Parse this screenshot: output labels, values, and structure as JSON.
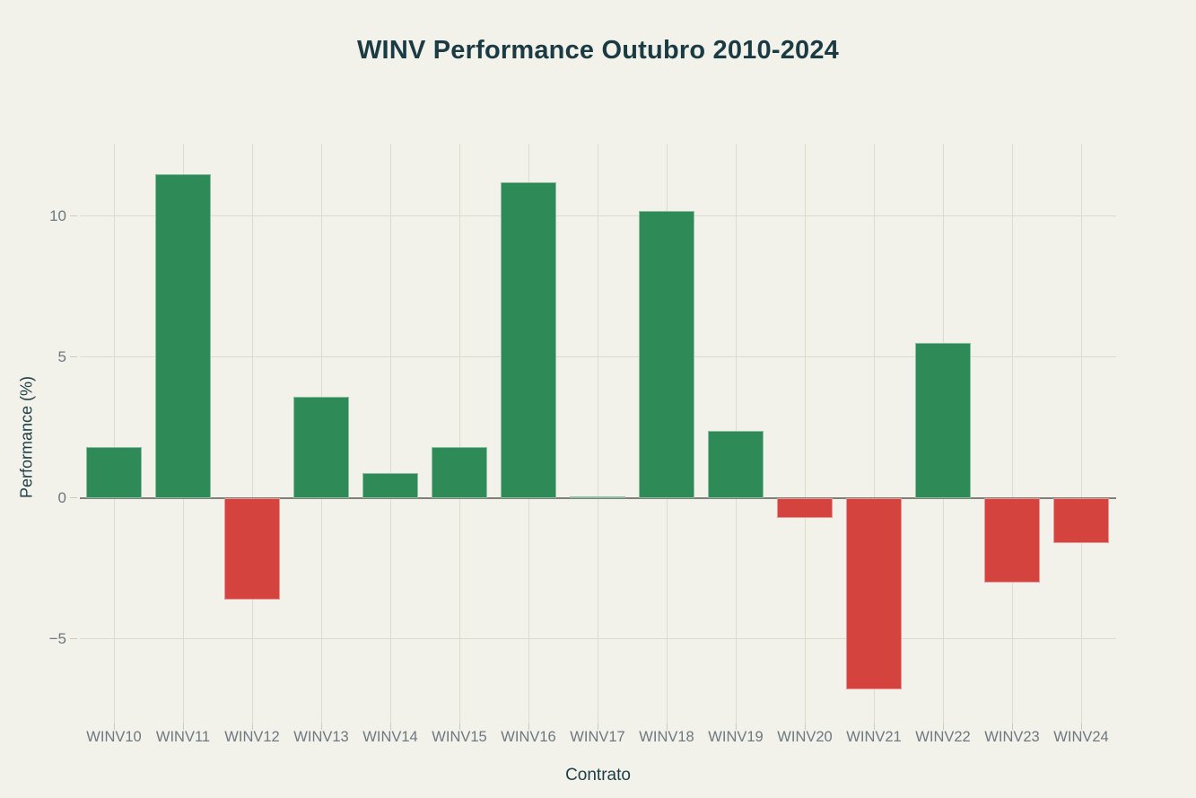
{
  "chart_data": {
    "type": "bar",
    "title": "WINV Performance Outubro 2010-2024",
    "xlabel": "Contrato",
    "ylabel": "Performance (%)",
    "categories": [
      "WINV10",
      "WINV11",
      "WINV12",
      "WINV13",
      "WINV14",
      "WINV15",
      "WINV16",
      "WINV17",
      "WINV18",
      "WINV19",
      "WINV20",
      "WINV21",
      "WINV22",
      "WINV23",
      "WINV24"
    ],
    "values": [
      1.8,
      11.5,
      -3.6,
      3.6,
      0.9,
      1.8,
      11.2,
      0.05,
      10.2,
      2.4,
      -0.7,
      -6.8,
      5.5,
      -3.0,
      -1.6
    ],
    "ytick_values": [
      10,
      5,
      0,
      -5
    ],
    "ytick_labels": [
      "10",
      "5",
      "0",
      "−5"
    ],
    "ylim": [
      -8.0,
      12.58
    ],
    "grid": true,
    "legend_position": "none",
    "colors": {
      "positive": "#2e8b57",
      "negative": "#d5433e",
      "background": "#f2f1ea",
      "gridline": "#dddace",
      "tick": "#ccc9bf",
      "zero_line": "#80807a",
      "title_text": "#1b3b44",
      "axis_title_text": "#1d3e46",
      "tick_text": "#6d7880"
    }
  }
}
